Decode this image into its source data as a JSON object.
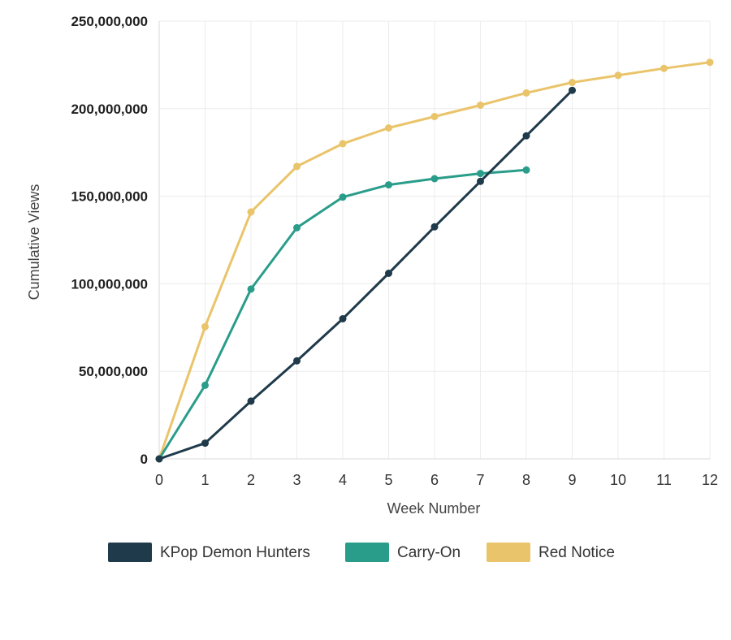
{
  "chart_data": {
    "type": "line",
    "xlabel": "Week Number",
    "ylabel": "Cumulative Views",
    "x_ticks": [
      "0",
      "1",
      "2",
      "3",
      "4",
      "5",
      "6",
      "7",
      "8",
      "9",
      "10",
      "11",
      "12"
    ],
    "y_ticks": [
      "0",
      "50,000,000",
      "100,000,000",
      "150,000,000",
      "200,000,000",
      "250,000,000"
    ],
    "xlim": [
      0,
      12
    ],
    "ylim": [
      0,
      250000000
    ],
    "grid": true,
    "legend_position": "bottom",
    "series": [
      {
        "name": "KPop Demon Hunters",
        "color": "#1f3a4a",
        "x": [
          0,
          1,
          2,
          3,
          4,
          5,
          6,
          7,
          8,
          9
        ],
        "values": [
          0,
          9000000,
          33000000,
          56000000,
          80000000,
          106000000,
          132500000,
          158500000,
          184500000,
          210500000
        ]
      },
      {
        "name": "Carry-On",
        "color": "#2a9d8a",
        "x": [
          0,
          1,
          2,
          3,
          4,
          5,
          6,
          7,
          8
        ],
        "values": [
          0,
          42000000,
          97000000,
          132000000,
          149500000,
          156500000,
          160000000,
          163000000,
          165000000
        ]
      },
      {
        "name": "Red Notice",
        "color": "#e9c46a",
        "x": [
          0,
          1,
          2,
          3,
          4,
          5,
          6,
          7,
          8,
          9,
          10,
          11,
          12
        ],
        "values": [
          0,
          75500000,
          141000000,
          167000000,
          180000000,
          189000000,
          195500000,
          202000000,
          209000000,
          215000000,
          219000000,
          223000000,
          226500000
        ]
      }
    ]
  }
}
